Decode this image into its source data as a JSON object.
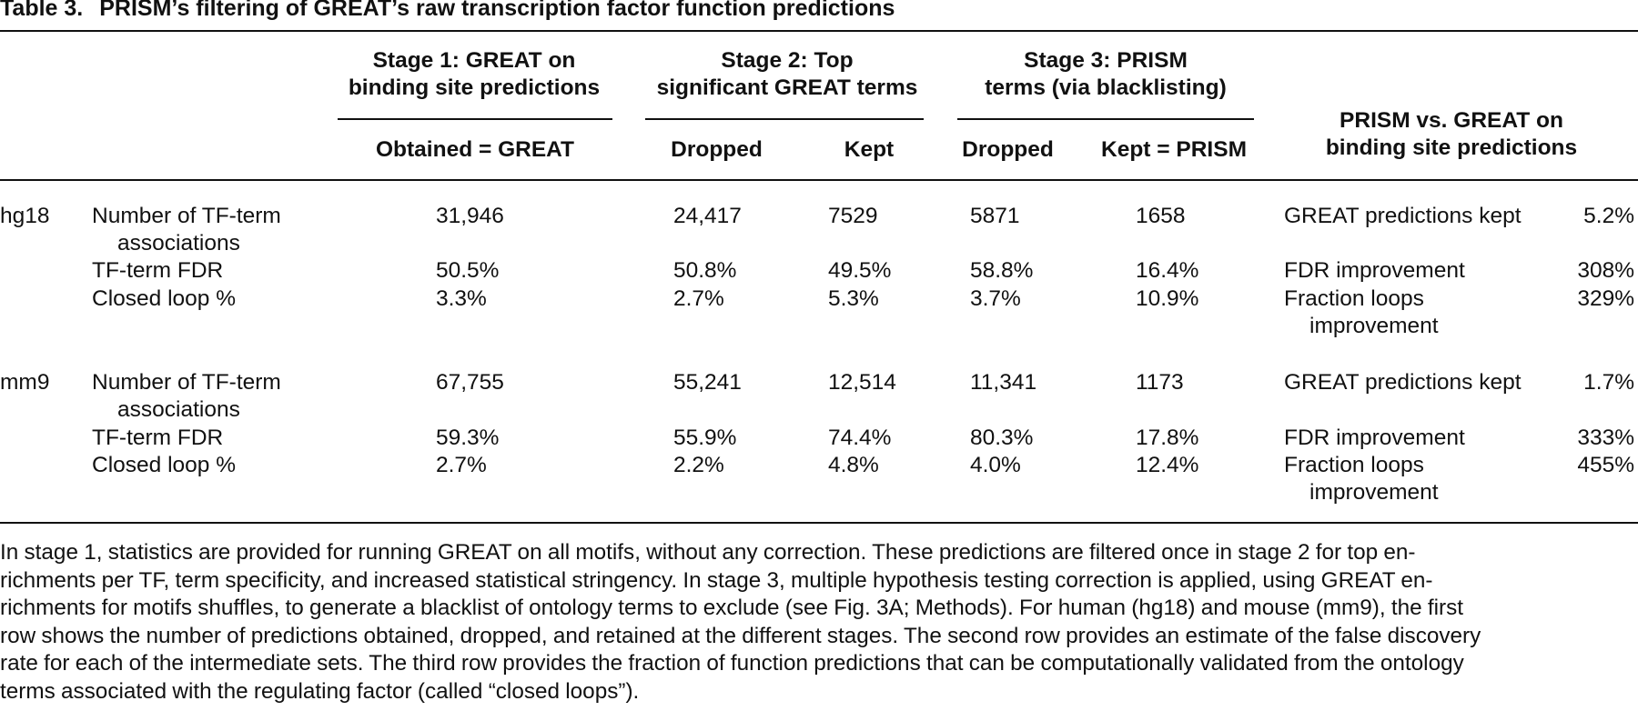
{
  "table": {
    "label": "Table 3.",
    "title": "PRISM’s filtering of GREAT’s raw transcription factor function predictions",
    "header": {
      "stage1": {
        "line1": "Stage 1: GREAT on",
        "line2": "binding site predictions",
        "sub": "Obtained = GREAT"
      },
      "stage2": {
        "line1": "Stage 2: Top",
        "line2": "significant GREAT terms",
        "sub_dropped": "Dropped",
        "sub_kept": "Kept"
      },
      "stage3": {
        "line1": "Stage 3: PRISM",
        "line2": "terms (via blacklisting)",
        "sub_dropped": "Dropped",
        "sub_kept": "Kept = PRISM"
      },
      "compare": {
        "line1": "PRISM vs. GREAT on",
        "line2": "binding site predictions"
      }
    },
    "groups": [
      {
        "genome": "hg18",
        "rows": [
          {
            "metric_line1": "Number of TF-term",
            "metric_line2": "associations",
            "obtained": "31,946",
            "s2_dropped": "24,417",
            "s2_kept": "7529",
            "s3_dropped": "5871",
            "s3_kept": "1658",
            "cmp_label_line1": "GREAT predictions kept",
            "cmp_label_line2": "",
            "cmp_value": "5.2%"
          },
          {
            "metric_line1": "TF-term FDR",
            "metric_line2": "",
            "obtained": "50.5%",
            "s2_dropped": "50.8%",
            "s2_kept": "49.5%",
            "s3_dropped": "58.8%",
            "s3_kept": "16.4%",
            "cmp_label_line1": "FDR improvement",
            "cmp_label_line2": "",
            "cmp_value": "308%"
          },
          {
            "metric_line1": "Closed loop %",
            "metric_line2": "",
            "obtained": "3.3%",
            "s2_dropped": "2.7%",
            "s2_kept": "5.3%",
            "s3_dropped": "3.7%",
            "s3_kept": "10.9%",
            "cmp_label_line1": "Fraction loops",
            "cmp_label_line2": "improvement",
            "cmp_value": "329%"
          }
        ]
      },
      {
        "genome": "mm9",
        "rows": [
          {
            "metric_line1": "Number of TF-term",
            "metric_line2": "associations",
            "obtained": "67,755",
            "s2_dropped": "55,241",
            "s2_kept": "12,514",
            "s3_dropped": "11,341",
            "s3_kept": "1173",
            "cmp_label_line1": "GREAT predictions kept",
            "cmp_label_line2": "",
            "cmp_value": "1.7%"
          },
          {
            "metric_line1": "TF-term FDR",
            "metric_line2": "",
            "obtained": "59.3%",
            "s2_dropped": "55.9%",
            "s2_kept": "74.4%",
            "s3_dropped": "80.3%",
            "s3_kept": "17.8%",
            "cmp_label_line1": "FDR improvement",
            "cmp_label_line2": "",
            "cmp_value": "333%"
          },
          {
            "metric_line1": "Closed loop %",
            "metric_line2": "",
            "obtained": "2.7%",
            "s2_dropped": "2.2%",
            "s2_kept": "4.8%",
            "s3_dropped": "4.0%",
            "s3_kept": "12.4%",
            "cmp_label_line1": "Fraction loops",
            "cmp_label_line2": "improvement",
            "cmp_value": "455%"
          }
        ]
      }
    ],
    "footnote_lines": [
      "In stage 1, statistics are provided for running GREAT on all motifs, without any correction. These predictions are filtered once in stage 2 for top en-",
      "richments per TF, term specificity, and increased statistical stringency. In stage 3, multiple hypothesis testing correction is applied, using GREAT en-",
      "richments for motifs shuffles, to generate a blacklist of ontology terms to exclude (see Fig. 3A; Methods). For human (hg18) and mouse (mm9), the first",
      "row shows the number of predictions obtained, dropped, and retained at the different stages. The second row provides an estimate of the false discovery",
      "rate for each of the intermediate sets. The third row provides the fraction of function predictions that can be computationally validated from the ontology",
      "terms associated with the regulating factor (called “closed loops”)."
    ]
  }
}
